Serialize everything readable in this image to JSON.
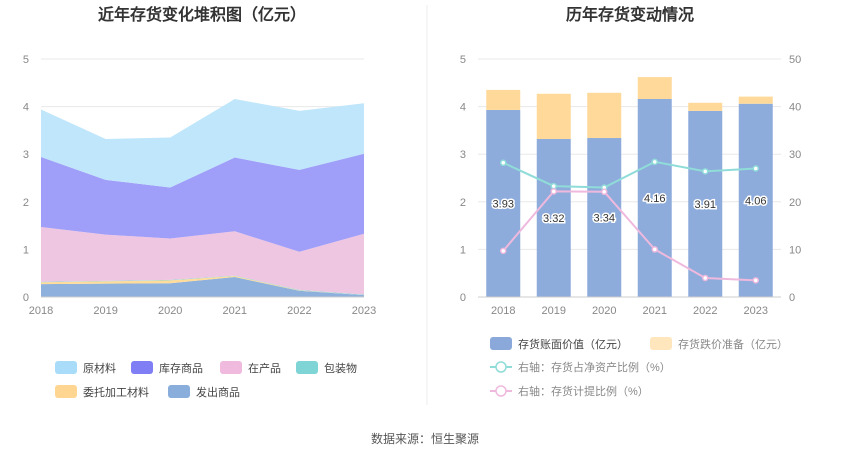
{
  "source_text": "数据来源：恒生聚源",
  "chart_data": [
    {
      "type": "area",
      "stacked": true,
      "title": "近年存货变化堆积图（亿元）",
      "x": [
        "2018",
        "2019",
        "2020",
        "2021",
        "2022",
        "2023"
      ],
      "ylim": [
        0,
        5
      ],
      "yticks": [
        "0",
        "1",
        "2",
        "3",
        "4",
        "5"
      ],
      "grid": true,
      "legend_position": "bottom",
      "series": [
        {
          "name": "发出商品",
          "color": "#8eb0dc",
          "values": [
            0.27,
            0.28,
            0.29,
            0.42,
            0.13,
            0.04
          ]
        },
        {
          "name": "委托加工材料",
          "color": "#ffdc9a",
          "values": [
            0.04,
            0.05,
            0.06,
            0.02,
            0.01,
            0.0
          ]
        },
        {
          "name": "包装物",
          "color": "#8ad5d8",
          "values": [
            0.01,
            0.01,
            0.01,
            0.01,
            0.01,
            0.01
          ]
        },
        {
          "name": "在产品",
          "color": "#efc6e2",
          "values": [
            1.15,
            0.97,
            0.87,
            0.93,
            0.8,
            1.28
          ]
        },
        {
          "name": "库存商品",
          "color": "#9f9ef8",
          "values": [
            1.47,
            1.15,
            1.07,
            1.55,
            1.72,
            1.68
          ]
        },
        {
          "name": "原材料",
          "color": "#bfe6fb",
          "values": [
            1.0,
            0.86,
            1.05,
            1.23,
            1.24,
            1.06
          ]
        }
      ],
      "legend_order": [
        "原材料",
        "库存商品",
        "在产品",
        "包装物",
        "委托加工材料",
        "发出商品"
      ],
      "legend_colors": {
        "原材料": "#a8dcf8",
        "库存商品": "#807ef5",
        "在产品": "#efbadd",
        "包装物": "#7fd4d6",
        "委托加工材料": "#ffd592",
        "发出商品": "#8aaedc"
      }
    },
    {
      "type": "bar",
      "stacked": true,
      "title": "历年存货变动情况",
      "categories": [
        "2018",
        "2019",
        "2020",
        "2021",
        "2022",
        "2023"
      ],
      "ylim": [
        0,
        5
      ],
      "yticks": [
        "0",
        "1",
        "2",
        "3",
        "4",
        "5"
      ],
      "y2lim": [
        0,
        50
      ],
      "y2ticks": [
        "0",
        "10",
        "20",
        "30",
        "40",
        "50"
      ],
      "grid": true,
      "legend_position": "bottom",
      "series": [
        {
          "name": "存货账面价值（亿元）",
          "color": "#8eacdb",
          "values": [
            3.93,
            3.32,
            3.34,
            4.16,
            3.91,
            4.06
          ],
          "labels": [
            "3.93",
            "3.32",
            "3.34",
            "4.16",
            "3.91",
            "4.06"
          ]
        },
        {
          "name": "存货跌价准备（亿元）",
          "color": "#ffd99a",
          "values": [
            0.42,
            0.95,
            0.95,
            0.46,
            0.17,
            0.15
          ]
        }
      ],
      "line_series": [
        {
          "name": "右轴：存货占净资产比例（%）",
          "color": "#8fdcd9",
          "axis": "right",
          "values": [
            28.2,
            23.3,
            23.0,
            28.4,
            26.4,
            27.0
          ]
        },
        {
          "name": "右轴：存货计提比例（%）",
          "color": "#efb9de",
          "axis": "right",
          "values": [
            9.7,
            22.2,
            22.1,
            10.0,
            4.0,
            3.5
          ]
        }
      ]
    }
  ]
}
